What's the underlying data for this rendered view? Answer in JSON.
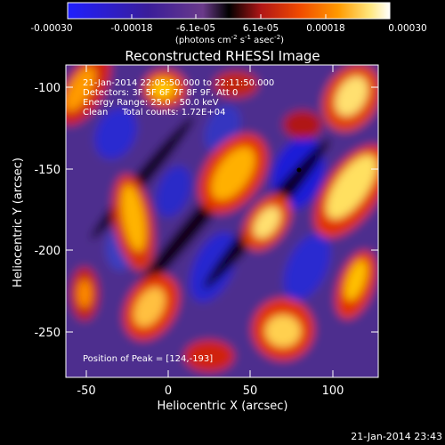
{
  "colorbar": {
    "tick_labels": [
      "-0.00030",
      "-0.00018",
      "-6.1e-05",
      "6.1e-05",
      "0.00018",
      "0.00030"
    ],
    "units": "(photons cm",
    "units_exp1": "-2",
    "units_mid": " s",
    "units_exp2": "-1",
    "units_end": " asec",
    "units_exp3": "-2",
    "units_close": ")",
    "range": [
      -0.0003,
      0.0003
    ],
    "colors": [
      "#1f1fff",
      "#3a1d9a",
      "#5a2e86",
      "#000000",
      "#b01616",
      "#f04a00",
      "#ff9a00",
      "#ffe880",
      "#ffffff"
    ]
  },
  "image": {
    "title": "Reconstructed RHESSI Image",
    "info_lines": [
      "21-Jan-2014 22:05:50.000 to 22:11:50.000",
      "Detectors: 3F 5F 6F 7F 8F 9F, Att 0",
      "Energy Range: 25.0 - 50.0 keV",
      "Clean     Total counts: 1.72E+04"
    ],
    "peak_label": "Position of Peak = [124,-193]"
  },
  "axes": {
    "xlabel": "Heliocentric X (arcsec)",
    "ylabel": "Heliocentric Y (arcsec)",
    "x_ticks": [
      "-50",
      "0",
      "50",
      "100"
    ],
    "y_ticks": [
      "-100",
      "-150",
      "-200",
      "-250"
    ],
    "x_tick_values": [
      -50,
      0,
      50,
      100
    ],
    "y_tick_values": [
      -100,
      -150,
      -200,
      -250
    ],
    "xlim": [
      -62,
      128
    ],
    "ylim": [
      -282,
      -87
    ]
  },
  "footer": {
    "timestamp": "21-Jan-2014 23:43"
  }
}
